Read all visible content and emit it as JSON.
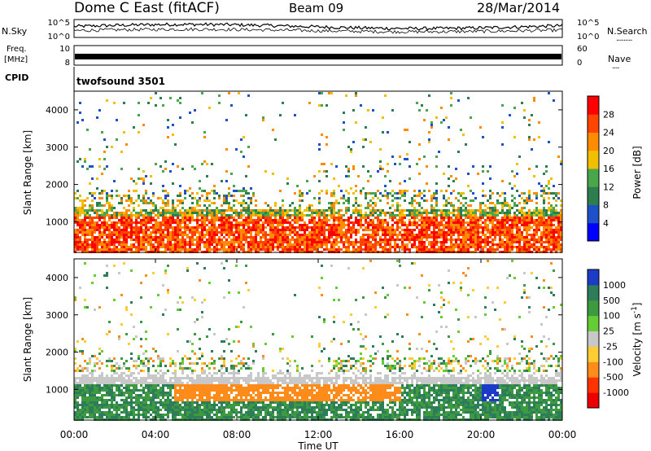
{
  "header": {
    "station": "Dome C East (fitACF)",
    "beam": "Beam 09",
    "date": "28/Mar/2014"
  },
  "top_panels": {
    "nsky_label": "N.Sky",
    "nsky_ticks": [
      "10^5",
      "10^0"
    ],
    "nsearch_label": "N.Search",
    "nsearch_ticks": [
      "10^5",
      "10^0"
    ],
    "freq_label_1": "Freq.",
    "freq_label_2": "[MHz]",
    "freq_ticks": [
      "10",
      "8"
    ],
    "nave_label": "Nave",
    "nave_ticks": [
      "60",
      "0"
    ],
    "cpid_label": "CPID",
    "cpid_value": "twofsound 3501"
  },
  "chart_data": [
    {
      "type": "heatmap",
      "name": "power",
      "ylabel": "Slant Range [km]",
      "yticks": [
        "4000",
        "3000",
        "2000",
        "1000"
      ],
      "ylim": [
        180,
        4500
      ],
      "colorbar_label": "Power [dB]",
      "colorbar_ticks": [
        "28",
        "24",
        "20",
        "16",
        "12",
        "8",
        "4"
      ],
      "colorbar_range": [
        0,
        32
      ],
      "colors": [
        "#0000ff",
        "#1e50c8",
        "#2e7d4f",
        "#4aa64a",
        "#f0c000",
        "#ff8c00",
        "#ff4500",
        "#ff0000"
      ]
    },
    {
      "type": "heatmap",
      "name": "velocity",
      "ylabel": "Slant Range [km]",
      "yticks": [
        "4000",
        "3000",
        "2000",
        "1000"
      ],
      "ylim": [
        180,
        4500
      ],
      "colorbar_label": "Velocity [m s-1]",
      "colorbar_ticks": [
        "1000",
        "500",
        "100",
        "25",
        "-25",
        "-100",
        "-500",
        "-1000"
      ],
      "colors": [
        "#1c3cc8",
        "#2e7d5a",
        "#3e9a3e",
        "#66cc33",
        "#c8c8c8",
        "#ffcc33",
        "#ff8c1a",
        "#ff3300",
        "#ee0000"
      ]
    }
  ],
  "xaxis": {
    "ticks": [
      "00:00",
      "04:00",
      "08:00",
      "12:00",
      "16:00",
      "20:00",
      "00:00"
    ],
    "label": "Time UT"
  }
}
